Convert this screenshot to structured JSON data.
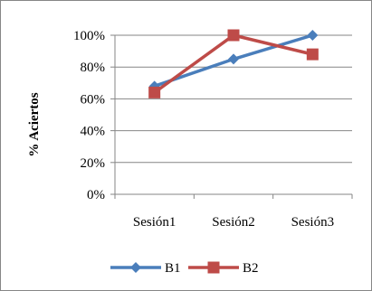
{
  "chart_data": {
    "type": "line",
    "title": "",
    "xlabel": "",
    "ylabel": "% Aciertos",
    "categories": [
      "Sesión1",
      "Sesión2",
      "Sesión3"
    ],
    "y_ticks": [
      "0%",
      "20%",
      "40%",
      "60%",
      "80%",
      "100%"
    ],
    "ylim": [
      0,
      100
    ],
    "grid": true,
    "legend_position": "bottom",
    "series": [
      {
        "name": "B1",
        "values": [
          68,
          85,
          100
        ],
        "color": "#4A7EBB",
        "marker": "diamond"
      },
      {
        "name": "B2",
        "values": [
          64,
          100,
          88
        ],
        "color": "#BE4B48",
        "marker": "square"
      }
    ]
  }
}
